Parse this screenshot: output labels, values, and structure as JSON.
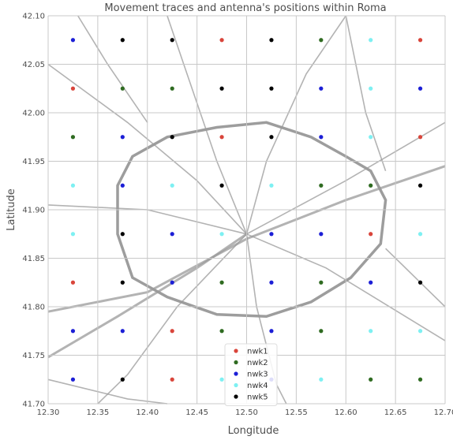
{
  "chart_data": {
    "type": "scatter",
    "title": "Movement traces and antenna's positions within Roma",
    "xlabel": "Longitude",
    "ylabel": "Latitude",
    "xlim": [
      12.3,
      12.7
    ],
    "ylim": [
      41.7,
      42.1
    ],
    "xticks": [
      "12.30",
      "12.35",
      "12.40",
      "12.45",
      "12.50",
      "12.55",
      "12.60",
      "12.65",
      "12.70"
    ],
    "yticks": [
      "41.70",
      "41.75",
      "41.80",
      "41.85",
      "41.90",
      "41.95",
      "42.00",
      "42.05",
      "42.10"
    ],
    "grid": true,
    "legend_position": "lower-center",
    "background_traces": "grey movement traces (road network of Rome)",
    "series": [
      {
        "name": "nwk1",
        "color": "#d9453b",
        "points": [
          [
            12.475,
            42.075
          ],
          [
            12.675,
            42.075
          ],
          [
            12.325,
            42.025
          ],
          [
            12.475,
            41.975
          ],
          [
            12.675,
            41.975
          ],
          [
            12.625,
            41.875
          ],
          [
            12.325,
            41.825
          ],
          [
            12.425,
            41.775
          ],
          [
            12.425,
            41.725
          ]
        ]
      },
      {
        "name": "nwk2",
        "color": "#2f6b21",
        "points": [
          [
            12.575,
            42.075
          ],
          [
            12.375,
            42.025
          ],
          [
            12.425,
            42.025
          ],
          [
            12.325,
            41.975
          ],
          [
            12.575,
            41.925
          ],
          [
            12.625,
            41.925
          ],
          [
            12.475,
            41.825
          ],
          [
            12.575,
            41.825
          ],
          [
            12.475,
            41.775
          ],
          [
            12.575,
            41.775
          ],
          [
            12.625,
            41.725
          ],
          [
            12.675,
            41.725
          ]
        ]
      },
      {
        "name": "nwk3",
        "color": "#1c1fd6",
        "points": [
          [
            12.325,
            42.075
          ],
          [
            12.575,
            42.025
          ],
          [
            12.675,
            42.025
          ],
          [
            12.375,
            41.975
          ],
          [
            12.575,
            41.975
          ],
          [
            12.375,
            41.925
          ],
          [
            12.425,
            41.875
          ],
          [
            12.525,
            41.875
          ],
          [
            12.575,
            41.875
          ],
          [
            12.425,
            41.825
          ],
          [
            12.525,
            41.825
          ],
          [
            12.625,
            41.825
          ],
          [
            12.325,
            41.775
          ],
          [
            12.375,
            41.775
          ],
          [
            12.525,
            41.775
          ],
          [
            12.325,
            41.725
          ],
          [
            12.525,
            41.725
          ]
        ]
      },
      {
        "name": "nwk4",
        "color": "#7ef0f2",
        "points": [
          [
            12.625,
            42.075
          ],
          [
            12.625,
            42.025
          ],
          [
            12.625,
            41.975
          ],
          [
            12.325,
            41.925
          ],
          [
            12.425,
            41.925
          ],
          [
            12.525,
            41.925
          ],
          [
            12.325,
            41.875
          ],
          [
            12.475,
            41.875
          ],
          [
            12.675,
            41.875
          ],
          [
            12.625,
            41.775
          ],
          [
            12.675,
            41.775
          ],
          [
            12.475,
            41.725
          ],
          [
            12.575,
            41.725
          ]
        ]
      },
      {
        "name": "nwk5",
        "color": "#000000",
        "points": [
          [
            12.375,
            42.075
          ],
          [
            12.425,
            42.075
          ],
          [
            12.525,
            42.075
          ],
          [
            12.475,
            42.025
          ],
          [
            12.525,
            42.025
          ],
          [
            12.425,
            41.975
          ],
          [
            12.525,
            41.975
          ],
          [
            12.475,
            41.925
          ],
          [
            12.675,
            41.925
          ],
          [
            12.375,
            41.875
          ],
          [
            12.375,
            41.825
          ],
          [
            12.675,
            41.825
          ],
          [
            12.375,
            41.725
          ]
        ]
      }
    ]
  }
}
